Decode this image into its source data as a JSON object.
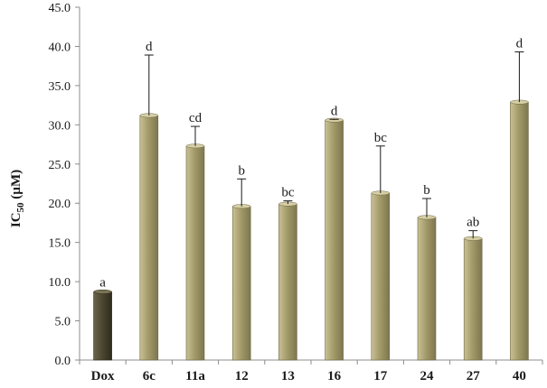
{
  "chart_data": {
    "type": "bar",
    "ylabel_main": "IC",
    "ylabel_sub": "50",
    "ylabel_unit": " (µM)",
    "ylim": [
      0,
      45
    ],
    "ytick_step": 5,
    "ytick_labels": [
      "0.0",
      "5.0",
      "10.0",
      "15.0",
      "20.0",
      "25.0",
      "30.0",
      "35.0",
      "40.0",
      "45.0"
    ],
    "grid": false,
    "categories": [
      "Dox",
      "6c",
      "11a",
      "12",
      "13",
      "16",
      "17",
      "24",
      "27",
      "40"
    ],
    "values": [
      8.7,
      31.2,
      27.3,
      19.6,
      19.9,
      30.6,
      21.3,
      18.2,
      15.5,
      32.9
    ],
    "errors": [
      0.0,
      7.7,
      2.5,
      3.5,
      0.4,
      0.1,
      6.0,
      2.4,
      1.0,
      6.4
    ],
    "significance_labels": [
      "a",
      "d",
      "cd",
      "b",
      "bc",
      "d",
      "bc",
      "b",
      "ab",
      "d"
    ],
    "colors": {
      "dox_bar": "#4a4530",
      "bar": "#a39b69",
      "bar_light": "#c9c196",
      "bar_dark": "#7d7650",
      "axis": "#8c8c8c",
      "error": "#1a1a1a"
    }
  }
}
